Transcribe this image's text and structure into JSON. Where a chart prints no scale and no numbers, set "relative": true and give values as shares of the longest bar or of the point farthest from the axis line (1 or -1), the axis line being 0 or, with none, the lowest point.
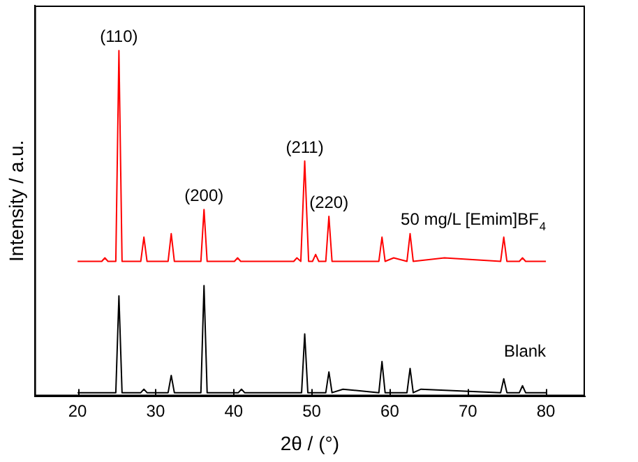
{
  "chart_data": {
    "type": "line",
    "relative": true,
    "xlabel": "2θ / (°)",
    "ylabel": "Intensity / a.u.",
    "xlim": [
      14.5,
      85
    ],
    "xticks": [
      20,
      30,
      40,
      50,
      60,
      70,
      80
    ],
    "grid": false,
    "legend": false,
    "marker": "none",
    "line_style": "solid",
    "series": [
      {
        "name": "50 mg/L [Emim]BF$_{4}$",
        "color": "#ff0000",
        "x": [
          20,
          23.1,
          23.5,
          23.9,
          24.9,
          25.3,
          25.7,
          28.1,
          28.5,
          28.9,
          31.6,
          32,
          32.4,
          35.8,
          36.2,
          36.6,
          40.1,
          40.5,
          40.9,
          47.7,
          48.1,
          48.6,
          49.1,
          49.6,
          50.1,
          50.5,
          50.9,
          51.8,
          52.2,
          52.6,
          58.6,
          59,
          59.4,
          60.5,
          62.2,
          62.6,
          63,
          67,
          74.2,
          74.6,
          75,
          76.6,
          77,
          77.4,
          80
        ],
        "values": [
          0.39,
          0.39,
          0.4,
          0.39,
          0.39,
          1.0,
          0.39,
          0.39,
          0.46,
          0.39,
          0.39,
          0.47,
          0.39,
          0.39,
          0.54,
          0.39,
          0.39,
          0.4,
          0.39,
          0.39,
          0.4,
          0.39,
          0.68,
          0.39,
          0.39,
          0.41,
          0.39,
          0.39,
          0.52,
          0.39,
          0.39,
          0.46,
          0.39,
          0.4,
          0.39,
          0.47,
          0.39,
          0.4,
          0.39,
          0.46,
          0.39,
          0.39,
          0.4,
          0.39,
          0.39
        ]
      },
      {
        "name": "Blank",
        "color": "#000000",
        "x": [
          20,
          24.9,
          25.3,
          25.7,
          28.1,
          28.5,
          28.9,
          31.6,
          32,
          32.4,
          35.8,
          36.2,
          36.6,
          40.6,
          41,
          41.4,
          48.7,
          49.1,
          49.5,
          51.8,
          52.2,
          52.6,
          54,
          58.6,
          59,
          59.4,
          62.2,
          62.6,
          63,
          64,
          74.2,
          74.6,
          75,
          76.6,
          77,
          77.4,
          80
        ],
        "values": [
          0.01,
          0.01,
          0.29,
          0.01,
          0.01,
          0.02,
          0.01,
          0.01,
          0.06,
          0.01,
          0.01,
          0.32,
          0.01,
          0.01,
          0.02,
          0.01,
          0.01,
          0.18,
          0.01,
          0.01,
          0.07,
          0.01,
          0.02,
          0.01,
          0.1,
          0.01,
          0.01,
          0.08,
          0.01,
          0.02,
          0.01,
          0.05,
          0.01,
          0.01,
          0.03,
          0.01,
          0.01
        ]
      }
    ],
    "annotations": [
      {
        "text": "(110)",
        "x": 25.3,
        "y": 1.0
      },
      {
        "text": "(200)",
        "x": 36.2,
        "y": 0.54
      },
      {
        "text": "(211)",
        "x": 49.1,
        "y": 0.68
      },
      {
        "text": "(220)",
        "x": 52.2,
        "y": 0.52
      }
    ]
  }
}
